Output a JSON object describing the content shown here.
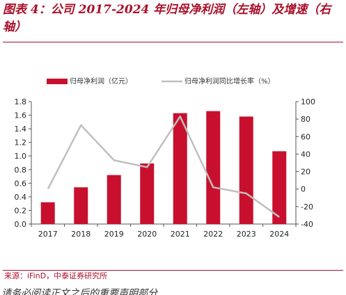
{
  "header": {
    "title": "图表 4：公司 2017-2024 年归母净利润（左轴）及增速（右轴）"
  },
  "footer": {
    "source": "来源：iFinD，中泰证券研究所",
    "disclaimer": "请务必阅读正文之后的重要声明部分"
  },
  "chart_data": {
    "type": "bar",
    "categories": [
      "2017",
      "2018",
      "2019",
      "2020",
      "2021",
      "2022",
      "2023",
      "2024"
    ],
    "series": [
      {
        "name": "归母净利润（亿元）",
        "type": "bar",
        "axis": "left",
        "color": "#c8102e",
        "values": [
          0.32,
          0.54,
          0.72,
          0.89,
          1.63,
          1.66,
          1.58,
          1.07
        ]
      },
      {
        "name": "归母净利润同比增长率（%）",
        "type": "line",
        "axis": "right",
        "color": "#bfbfbf",
        "values": [
          0,
          73,
          33,
          25,
          83,
          2,
          -5,
          -32
        ]
      }
    ],
    "yleft": {
      "lim": [
        0,
        1.8
      ],
      "ticks": [
        "0.0",
        "0.2",
        "0.4",
        "0.6",
        "0.8",
        "1.0",
        "1.2",
        "1.4",
        "1.6",
        "1.8"
      ]
    },
    "yright": {
      "lim": [
        -40,
        100
      ],
      "ticks": [
        "-40",
        "-20",
        "0",
        "20",
        "40",
        "60",
        "80",
        "100"
      ]
    },
    "legend": "top",
    "grid": false
  }
}
